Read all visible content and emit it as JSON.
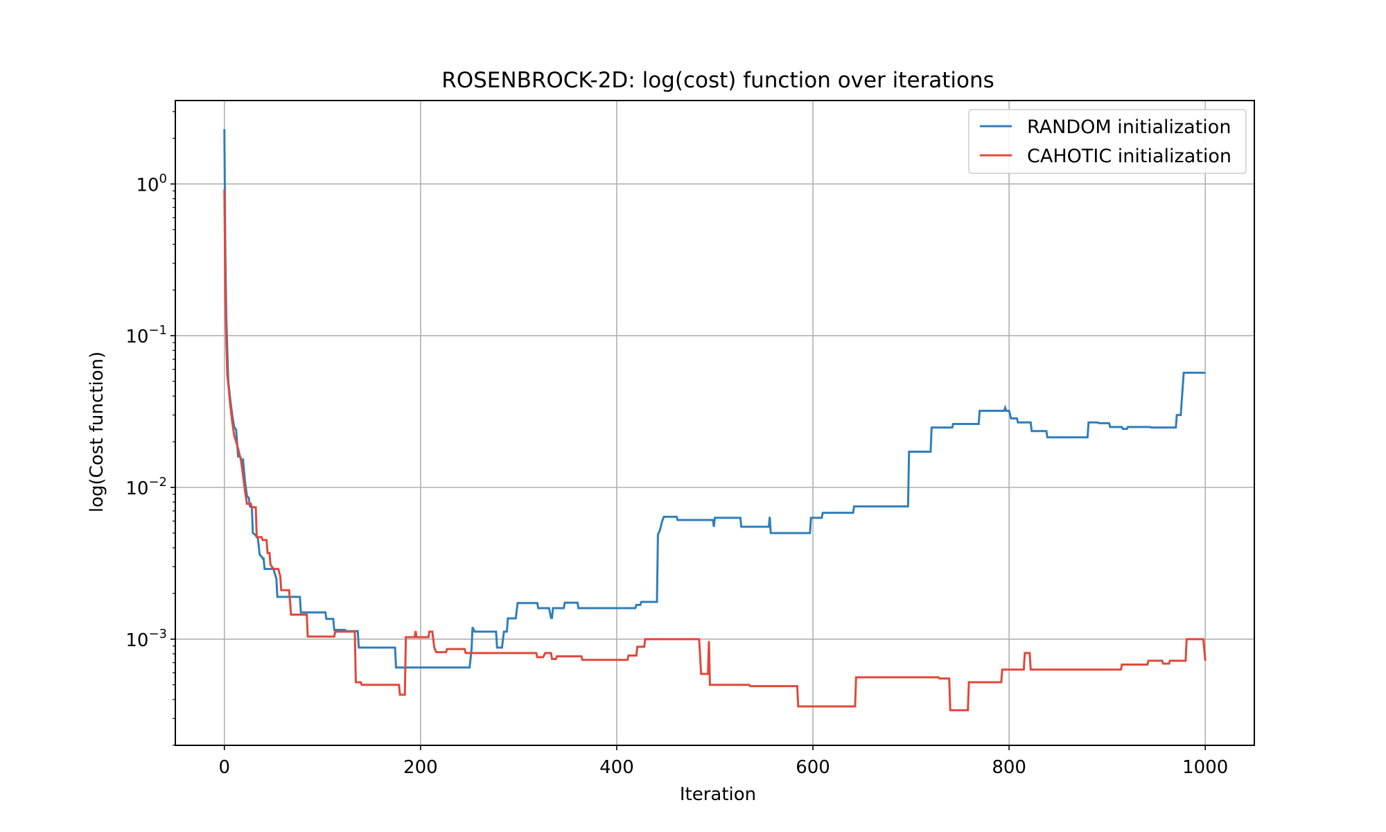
{
  "chart_data": {
    "type": "line",
    "title": "ROSENBROCK-2D: log(cost) function over iterations",
    "xlabel": "Iteration",
    "ylabel": "log(Cost function)",
    "xlim": [
      -50,
      1050
    ],
    "ylim_log10": [
      -3.7,
      0.55
    ],
    "yscale": "log",
    "grid": true,
    "legend_position": "top-right",
    "x_ticks": [
      "0",
      "200",
      "400",
      "600",
      "800",
      "1000"
    ],
    "x_tick_values": [
      0,
      200,
      400,
      600,
      800,
      1000
    ],
    "y_ticks": [
      {
        "base": "10",
        "exp": "0",
        "value": 1
      },
      {
        "base": "10",
        "exp": "−1",
        "value": 0.1
      },
      {
        "base": "10",
        "exp": "−2",
        "value": 0.01
      },
      {
        "base": "10",
        "exp": "−3",
        "value": 0.001
      }
    ],
    "series": [
      {
        "name": "RANDOM initialization",
        "color": "#2e7ebc",
        "points": [
          [
            0,
            2.3
          ],
          [
            1,
            0.35
          ],
          [
            2,
            0.13
          ],
          [
            3,
            0.08
          ],
          [
            4,
            0.05
          ],
          [
            6,
            0.038
          ],
          [
            8,
            0.03
          ],
          [
            10,
            0.025
          ],
          [
            12,
            0.024
          ],
          [
            14,
            0.016
          ],
          [
            16,
            0.016
          ],
          [
            18,
            0.015
          ],
          [
            19,
            0.0152
          ],
          [
            21,
            0.011
          ],
          [
            23,
            0.0088
          ],
          [
            25,
            0.0085
          ],
          [
            26,
            0.0075
          ],
          [
            28,
            0.0074
          ],
          [
            29,
            0.005
          ],
          [
            31,
            0.0049
          ],
          [
            32,
            0.0048
          ],
          [
            34,
            0.0047
          ],
          [
            36,
            0.0036
          ],
          [
            38,
            0.0035
          ],
          [
            39,
            0.0034
          ],
          [
            40,
            0.0034
          ],
          [
            41,
            0.0029
          ],
          [
            43,
            0.0029
          ],
          [
            50,
            0.0029
          ],
          [
            53,
            0.0025
          ],
          [
            54,
            0.0019
          ],
          [
            60,
            0.0019
          ],
          [
            77,
            0.0019
          ],
          [
            78,
            0.0015
          ],
          [
            103,
            0.0015
          ],
          [
            104,
            0.00136
          ],
          [
            111,
            0.00136
          ],
          [
            112,
            0.00115
          ],
          [
            123,
            0.00115
          ],
          [
            124,
            0.00113
          ],
          [
            136,
            0.00113
          ],
          [
            137,
            0.00088
          ],
          [
            174,
            0.00088
          ],
          [
            175,
            0.00065
          ],
          [
            250,
            0.00065
          ],
          [
            252,
            0.00086
          ],
          [
            253,
            0.0012
          ],
          [
            255,
            0.00112
          ],
          [
            277,
            0.00112
          ],
          [
            278,
            0.00088
          ],
          [
            283,
            0.00088
          ],
          [
            285,
            0.00112
          ],
          [
            288,
            0.00112
          ],
          [
            289,
            0.00137
          ],
          [
            297,
            0.00137
          ],
          [
            299,
            0.00173
          ],
          [
            319,
            0.00173
          ],
          [
            320,
            0.0016
          ],
          [
            331,
            0.0016
          ],
          [
            333,
            0.00138
          ],
          [
            334,
            0.00138
          ],
          [
            335,
            0.0016
          ],
          [
            346,
            0.0016
          ],
          [
            347,
            0.00174
          ],
          [
            360,
            0.00174
          ],
          [
            361,
            0.0016
          ],
          [
            419,
            0.0016
          ],
          [
            420,
            0.00168
          ],
          [
            424,
            0.00168
          ],
          [
            425,
            0.00176
          ],
          [
            441,
            0.00176
          ],
          [
            442,
            0.0049
          ],
          [
            444,
            0.0052
          ],
          [
            446,
            0.0059
          ],
          [
            448,
            0.0064
          ],
          [
            461,
            0.0064
          ],
          [
            462,
            0.0061
          ],
          [
            498,
            0.0061
          ],
          [
            499,
            0.0055
          ],
          [
            500,
            0.0063
          ],
          [
            526,
            0.0063
          ],
          [
            527,
            0.0055
          ],
          [
            555,
            0.0055
          ],
          [
            556,
            0.0064
          ],
          [
            557,
            0.005
          ],
          [
            597,
            0.005
          ],
          [
            598,
            0.0063
          ],
          [
            609,
            0.0063
          ],
          [
            610,
            0.0068
          ],
          [
            641,
            0.0068
          ],
          [
            642,
            0.0075
          ],
          [
            697,
            0.0075
          ],
          [
            698,
            0.0172
          ],
          [
            720,
            0.0172
          ],
          [
            721,
            0.0248
          ],
          [
            742,
            0.0248
          ],
          [
            743,
            0.0262
          ],
          [
            769,
            0.0262
          ],
          [
            770,
            0.032
          ],
          [
            795,
            0.032
          ],
          [
            796,
            0.0335
          ],
          [
            797,
            0.032
          ],
          [
            800,
            0.032
          ],
          [
            802,
            0.0285
          ],
          [
            808,
            0.0285
          ],
          [
            809,
            0.0268
          ],
          [
            822,
            0.0268
          ],
          [
            823,
            0.0235
          ],
          [
            838,
            0.0235
          ],
          [
            839,
            0.0214
          ],
          [
            880,
            0.0214
          ],
          [
            881,
            0.0268
          ],
          [
            890,
            0.0268
          ],
          [
            892,
            0.0265
          ],
          [
            902,
            0.0265
          ],
          [
            903,
            0.025
          ],
          [
            915,
            0.025
          ],
          [
            916,
            0.0243
          ],
          [
            920,
            0.0243
          ],
          [
            921,
            0.025
          ],
          [
            944,
            0.025
          ],
          [
            945,
            0.0248
          ],
          [
            970,
            0.0248
          ],
          [
            971,
            0.03
          ],
          [
            975,
            0.03
          ],
          [
            978,
            0.057
          ],
          [
            1000,
            0.057
          ]
        ]
      },
      {
        "name": "CAHOTIC initialization",
        "color": "#e0483a",
        "points": [
          [
            0,
            0.92
          ],
          [
            1,
            0.2
          ],
          [
            2,
            0.09
          ],
          [
            3,
            0.055
          ],
          [
            4,
            0.048
          ],
          [
            6,
            0.035
          ],
          [
            8,
            0.027
          ],
          [
            10,
            0.022
          ],
          [
            12,
            0.02
          ],
          [
            14,
            0.018
          ],
          [
            17,
            0.015
          ],
          [
            19,
            0.012
          ],
          [
            21,
            0.0095
          ],
          [
            23,
            0.0078
          ],
          [
            27,
            0.0078
          ],
          [
            28,
            0.0074
          ],
          [
            32,
            0.0074
          ],
          [
            33,
            0.0047
          ],
          [
            38,
            0.0047
          ],
          [
            39,
            0.0045
          ],
          [
            43,
            0.0045
          ],
          [
            44,
            0.0037
          ],
          [
            46,
            0.0037
          ],
          [
            47,
            0.0031
          ],
          [
            50,
            0.0029
          ],
          [
            55,
            0.0029
          ],
          [
            57,
            0.0026
          ],
          [
            58,
            0.0021
          ],
          [
            66,
            0.0021
          ],
          [
            68,
            0.00145
          ],
          [
            84,
            0.00145
          ],
          [
            85,
            0.00104
          ],
          [
            112,
            0.00104
          ],
          [
            113,
            0.00112
          ],
          [
            133,
            0.00112
          ],
          [
            134,
            0.00052
          ],
          [
            139,
            0.00052
          ],
          [
            140,
            0.0005
          ],
          [
            178,
            0.0005
          ],
          [
            179,
            0.00043
          ],
          [
            184,
            0.00043
          ],
          [
            185,
            0.00103
          ],
          [
            194,
            0.00103
          ],
          [
            195,
            0.00113
          ],
          [
            196,
            0.00103
          ],
          [
            208,
            0.00103
          ],
          [
            209,
            0.00112
          ],
          [
            212,
            0.00112
          ],
          [
            214,
            0.00088
          ],
          [
            216,
            0.00082
          ],
          [
            226,
            0.00082
          ],
          [
            227,
            0.00086
          ],
          [
            245,
            0.00086
          ],
          [
            246,
            0.00081
          ],
          [
            318,
            0.00081
          ],
          [
            319,
            0.00076
          ],
          [
            325,
            0.00076
          ],
          [
            327,
            0.00081
          ],
          [
            333,
            0.00081
          ],
          [
            334,
            0.00074
          ],
          [
            338,
            0.00074
          ],
          [
            339,
            0.00077
          ],
          [
            364,
            0.00077
          ],
          [
            365,
            0.00073
          ],
          [
            411,
            0.00073
          ],
          [
            412,
            0.00078
          ],
          [
            420,
            0.00078
          ],
          [
            421,
            0.00089
          ],
          [
            428,
            0.00089
          ],
          [
            429,
            0.001
          ],
          [
            484,
            0.001
          ],
          [
            485,
            0.00078
          ],
          [
            486,
            0.00059
          ],
          [
            493,
            0.00059
          ],
          [
            494,
            0.00097
          ],
          [
            495,
            0.0005
          ],
          [
            535,
            0.0005
          ],
          [
            536,
            0.00049
          ],
          [
            584,
            0.00049
          ],
          [
            585,
            0.00036
          ],
          [
            643,
            0.00036
          ],
          [
            644,
            0.00056
          ],
          [
            728,
            0.00056
          ],
          [
            729,
            0.00055
          ],
          [
            739,
            0.00055
          ],
          [
            740,
            0.00034
          ],
          [
            758,
            0.00034
          ],
          [
            759,
            0.00052
          ],
          [
            792,
            0.00052
          ],
          [
            793,
            0.00063
          ],
          [
            815,
            0.00063
          ],
          [
            816,
            0.00081
          ],
          [
            821,
            0.00081
          ],
          [
            822,
            0.00063
          ],
          [
            914,
            0.00063
          ],
          [
            915,
            0.00068
          ],
          [
            941,
            0.00068
          ],
          [
            942,
            0.00072
          ],
          [
            956,
            0.00072
          ],
          [
            957,
            0.00069
          ],
          [
            963,
            0.00069
          ],
          [
            964,
            0.00072
          ],
          [
            980,
            0.00072
          ],
          [
            981,
            0.001
          ],
          [
            998,
            0.001
          ],
          [
            1000,
            0.00072
          ]
        ]
      }
    ]
  }
}
